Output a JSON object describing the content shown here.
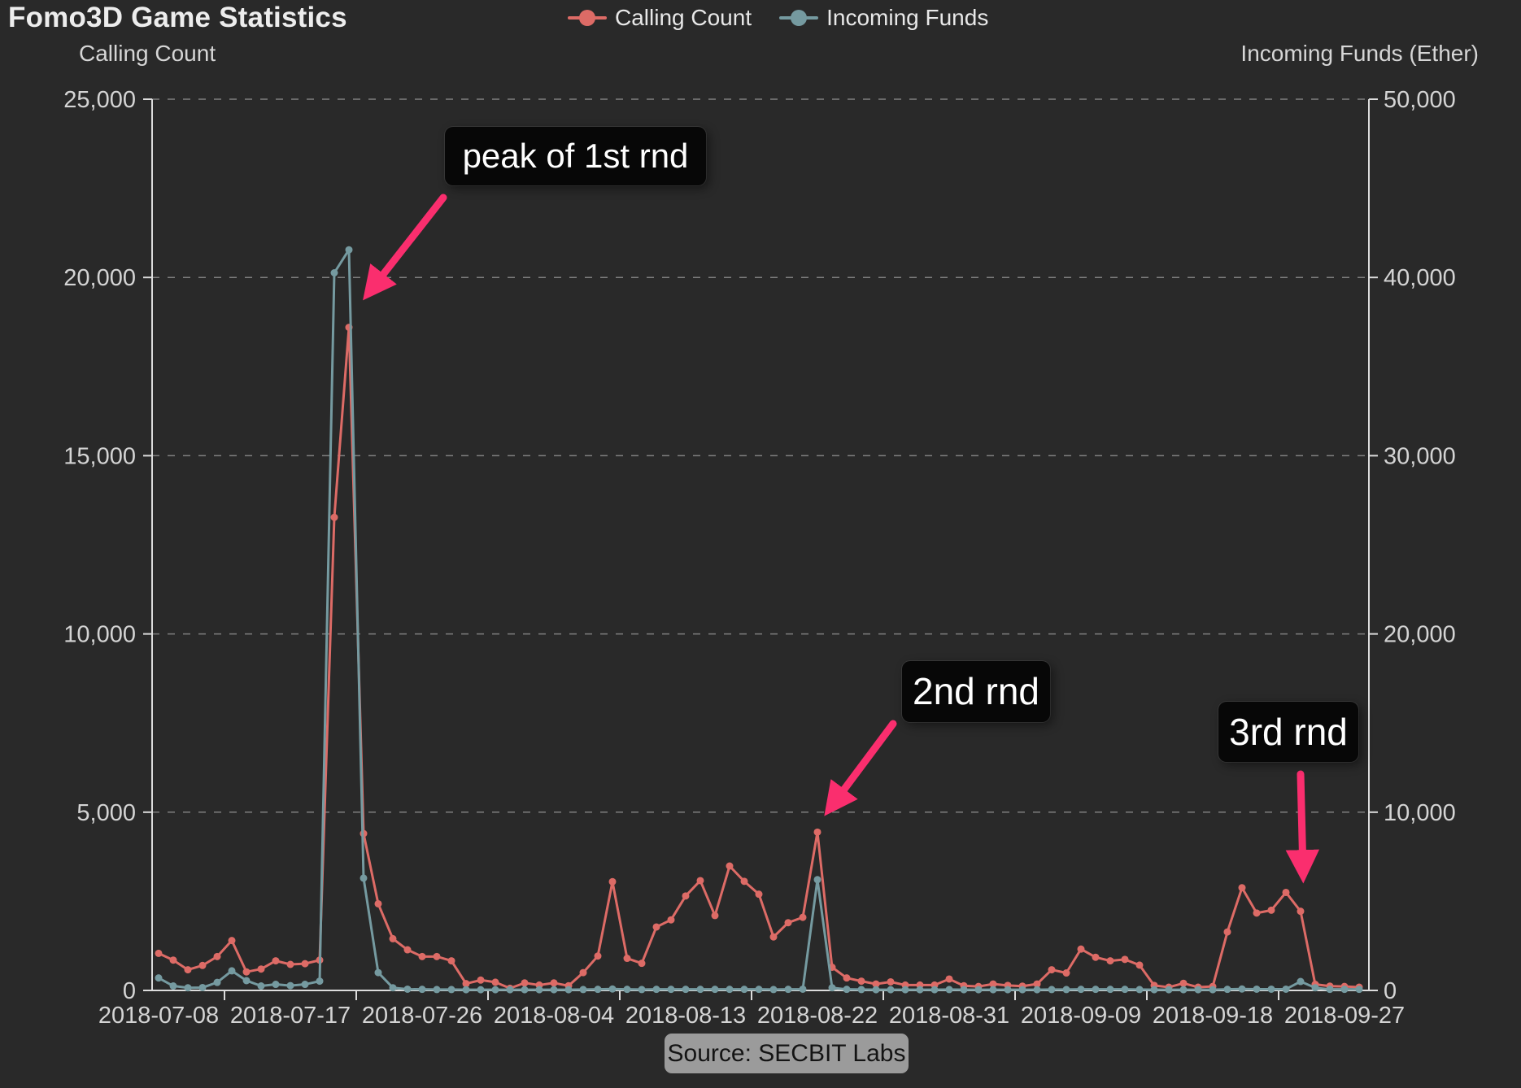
{
  "title": "Fomo3D Game Statistics",
  "colors": {
    "background": "#292929",
    "calling_count": "#dd6b66",
    "incoming_funds": "#759aa0",
    "arrow_pink": "#fa2e6e",
    "grid": "#8f8f8f",
    "axis": "#dcdcdc",
    "tick_text": "#d4d4d4"
  },
  "chart_data": {
    "type": "line",
    "title": "Fomo3D Game Statistics",
    "legend": [
      "Calling Count",
      "Incoming Funds"
    ],
    "legend_position": "top-center",
    "grid": "dashed-horizontal",
    "yaxis_left": {
      "name": "Calling Count",
      "min": 0,
      "max": 25000,
      "tick_values": [
        0,
        5000,
        10000,
        15000,
        20000,
        25000
      ],
      "tick_labels": [
        "0",
        "5,000",
        "10,000",
        "15,000",
        "20,000",
        "25,000"
      ]
    },
    "yaxis_right": {
      "name": "Incoming Funds (Ether)",
      "min": 0,
      "max": 50000,
      "tick_values": [
        0,
        10000,
        20000,
        30000,
        40000,
        50000
      ],
      "tick_labels": [
        "0",
        "10,000",
        "20,000",
        "30,000",
        "40,000",
        "50,000"
      ]
    },
    "x_tick_labels": [
      "2018-07-08",
      "2018-07-17",
      "2018-07-26",
      "2018-08-04",
      "2018-08-13",
      "2018-08-22",
      "2018-08-31",
      "2018-09-09",
      "2018-09-18",
      "2018-09-27"
    ],
    "x": [
      "2018-07-08",
      "2018-07-09",
      "2018-07-10",
      "2018-07-11",
      "2018-07-12",
      "2018-07-13",
      "2018-07-14",
      "2018-07-15",
      "2018-07-16",
      "2018-07-17",
      "2018-07-18",
      "2018-07-19",
      "2018-07-20",
      "2018-07-21",
      "2018-07-22",
      "2018-07-23",
      "2018-07-24",
      "2018-07-25",
      "2018-07-26",
      "2018-07-27",
      "2018-07-28",
      "2018-07-29",
      "2018-07-30",
      "2018-07-31",
      "2018-08-01",
      "2018-08-02",
      "2018-08-03",
      "2018-08-04",
      "2018-08-05",
      "2018-08-06",
      "2018-08-07",
      "2018-08-08",
      "2018-08-09",
      "2018-08-10",
      "2018-08-11",
      "2018-08-12",
      "2018-08-13",
      "2018-08-14",
      "2018-08-15",
      "2018-08-16",
      "2018-08-17",
      "2018-08-18",
      "2018-08-19",
      "2018-08-20",
      "2018-08-21",
      "2018-08-22",
      "2018-08-23",
      "2018-08-24",
      "2018-08-25",
      "2018-08-26",
      "2018-08-27",
      "2018-08-28",
      "2018-08-29",
      "2018-08-30",
      "2018-08-31",
      "2018-09-01",
      "2018-09-02",
      "2018-09-03",
      "2018-09-04",
      "2018-09-05",
      "2018-09-06",
      "2018-09-07",
      "2018-09-08",
      "2018-09-09",
      "2018-09-10",
      "2018-09-11",
      "2018-09-12",
      "2018-09-13",
      "2018-09-14",
      "2018-09-15",
      "2018-09-16",
      "2018-09-17",
      "2018-09-18",
      "2018-09-19",
      "2018-09-20",
      "2018-09-21",
      "2018-09-22",
      "2018-09-23",
      "2018-09-24",
      "2018-09-25",
      "2018-09-26",
      "2018-09-27",
      "2018-09-28"
    ],
    "series": [
      {
        "name": "Calling Count",
        "axis": "left",
        "color": "#dd6b66",
        "values": [
          1040,
          850,
          580,
          700,
          950,
          1400,
          520,
          600,
          830,
          730,
          750,
          850,
          13270,
          18600,
          4400,
          2430,
          1450,
          1140,
          950,
          950,
          830,
          190,
          290,
          230,
          60,
          210,
          150,
          210,
          130,
          500,
          965,
          3050,
          900,
          760,
          1780,
          1980,
          2650,
          3080,
          2100,
          3490,
          3060,
          2700,
          1500,
          1900,
          2050,
          4440,
          650,
          350,
          260,
          180,
          240,
          150,
          150,
          150,
          320,
          130,
          110,
          180,
          140,
          120,
          180,
          580,
          490,
          1160,
          930,
          830,
          870,
          710,
          140,
          90,
          200,
          90,
          110,
          1640,
          2880,
          2170,
          2250,
          2750,
          2220,
          170,
          120,
          110,
          90
        ]
      },
      {
        "name": "Incoming Funds",
        "axis": "right",
        "color": "#759aa0",
        "values": [
          700,
          250,
          150,
          160,
          450,
          1100,
          550,
          250,
          340,
          270,
          340,
          520,
          40260,
          41550,
          6300,
          1000,
          150,
          70,
          60,
          50,
          50,
          40,
          40,
          40,
          40,
          40,
          40,
          40,
          40,
          50,
          60,
          80,
          60,
          50,
          60,
          60,
          60,
          60,
          60,
          60,
          60,
          60,
          50,
          60,
          70,
          6215,
          150,
          60,
          50,
          40,
          40,
          40,
          40,
          40,
          50,
          40,
          40,
          40,
          40,
          40,
          40,
          50,
          50,
          60,
          60,
          60,
          60,
          50,
          40,
          40,
          40,
          40,
          40,
          60,
          80,
          70,
          70,
          70,
          500,
          150,
          60,
          60,
          60
        ]
      }
    ],
    "annotations": [
      {
        "text": "peak of 1st rnd",
        "points_to": "2018-07-21 peak"
      },
      {
        "text": "2nd rnd",
        "points_to": "2018-08-22 spike"
      },
      {
        "text": "3rd rnd",
        "points_to": "2018-09-20 bump"
      }
    ],
    "source": "Source: SECBIT Labs"
  }
}
